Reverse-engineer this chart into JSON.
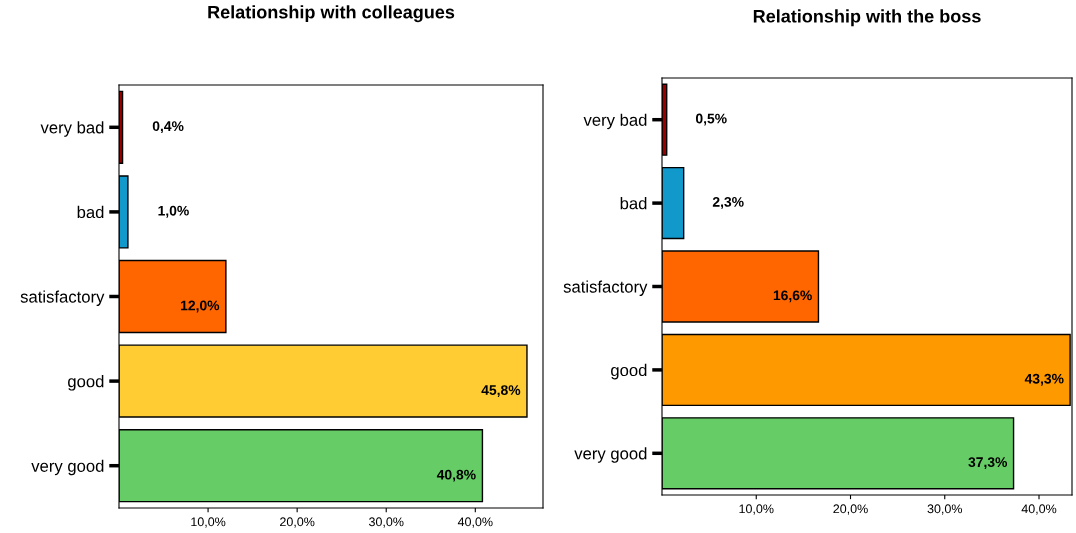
{
  "chart_data": [
    {
      "type": "bar",
      "orientation": "horizontal",
      "title": "Relationship with colleagues",
      "categories": [
        "very bad",
        "bad",
        "satisfactory",
        "good",
        "very good"
      ],
      "values": [
        0.4,
        1.0,
        12.0,
        45.8,
        40.8
      ],
      "colors": [
        "#990000",
        "#1199cc",
        "#ff6600",
        "#ffcc33",
        "#66cc66"
      ],
      "value_labels": [
        "0,4%",
        "1,0%",
        "12,0%",
        "45,8%",
        "40,8%"
      ],
      "xlim": [
        0,
        47.6
      ],
      "xticks": [
        {
          "value": 10,
          "label": "10,0%"
        },
        {
          "value": 20,
          "label": "20,0%"
        },
        {
          "value": 30,
          "label": "30,0%"
        },
        {
          "value": 40,
          "label": "40,0%"
        }
      ],
      "grid": false,
      "legend": false
    },
    {
      "type": "bar",
      "orientation": "horizontal",
      "title": "Relationship with the boss",
      "categories": [
        "very bad",
        "bad",
        "satisfactory",
        "good",
        "very good"
      ],
      "values": [
        0.5,
        2.3,
        16.6,
        43.3,
        37.3
      ],
      "colors": [
        "#990000",
        "#1199cc",
        "#ff6600",
        "#ff9900",
        "#66cc66"
      ],
      "value_labels": [
        "0,5%",
        "2,3%",
        "16,6%",
        "43,3%",
        "37,3%"
      ],
      "xlim": [
        0,
        43.5
      ],
      "xticks": [
        {
          "value": 10,
          "label": "10,0%"
        },
        {
          "value": 20,
          "label": "20,0%"
        },
        {
          "value": 30,
          "label": "30,0%"
        },
        {
          "value": 40,
          "label": "40,0%"
        }
      ],
      "grid": false,
      "legend": false
    }
  ]
}
